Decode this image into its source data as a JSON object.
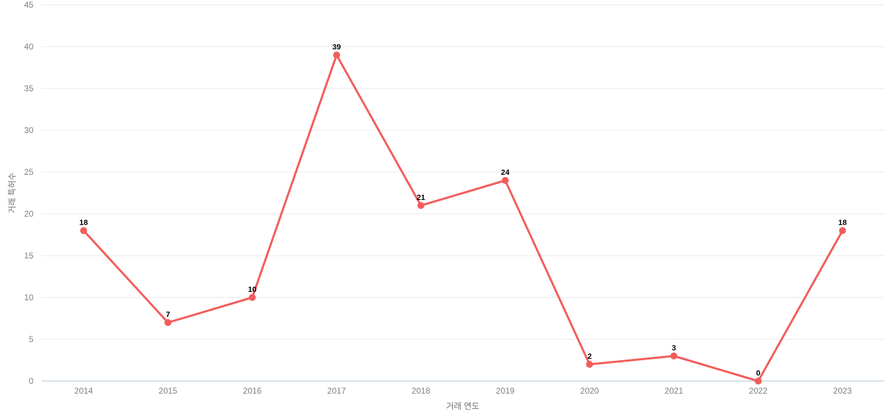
{
  "chart_data": {
    "type": "line",
    "categories": [
      "2014",
      "2015",
      "2016",
      "2017",
      "2018",
      "2019",
      "2020",
      "2021",
      "2022",
      "2023"
    ],
    "values": [
      18,
      7,
      10,
      39,
      21,
      24,
      2,
      3,
      0,
      18
    ],
    "title": "",
    "xlabel": "거래 연도",
    "ylabel": "거래 특허수",
    "ylim": [
      0,
      45
    ],
    "ytick_step": 5,
    "grid": true,
    "legend": "none",
    "colors": {
      "line": "#f25d5b",
      "point": "#f25d5b",
      "point_label": "#000000",
      "tick_label": "#7f7f7f",
      "axis_title": "#737373",
      "gridline": "#e9e9e9",
      "baseline": "#ccd6e3",
      "background": "#ffffff"
    }
  }
}
